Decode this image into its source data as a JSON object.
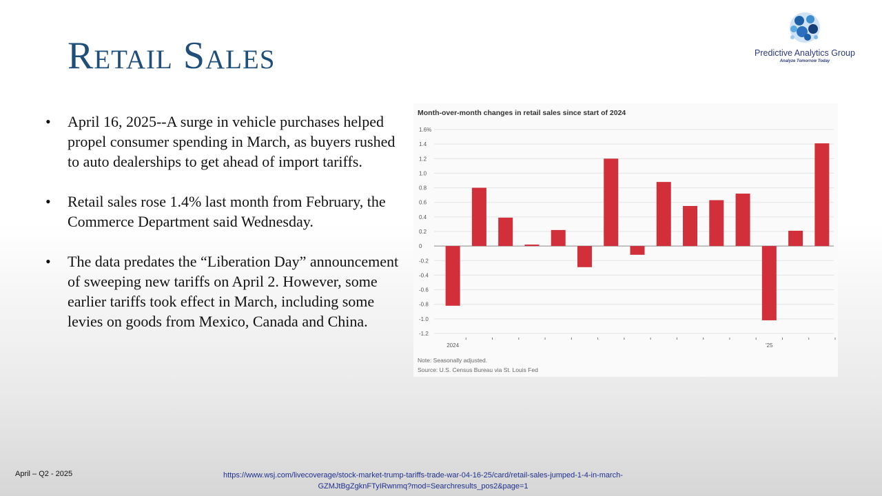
{
  "slide": {
    "title": "Retail Sales",
    "logo": {
      "name": "Predictive Analytics Group",
      "tagline": "Analyze Tomorrow Today"
    },
    "bullets": [
      "April 16, 2025--A surge in vehicle purchases helped propel consumer spending in March, as buyers rushed to auto dealerships to get ahead of import tariffs.",
      "Retail sales rose 1.4% last month from February, the Commerce Department said Wednesday.",
      "The data predates the “Liberation Day” announcement of sweeping new tariffs on April 2. However, some earlier tariffs took effect in March, including some levies on goods from Mexico, Canada and China."
    ],
    "footer_left": "April – Q2 - 2025",
    "footer_link": "https://www.wsj.com/livecoverage/stock-market-trump-tariffs-trade-war-04-16-25/card/retail-sales-jumped-1-4-in-march-GZMJtBgZgknFTyIRwnmq?mod=Searchresults_pos2&page=1"
  },
  "chart_data": {
    "type": "bar",
    "title": "Month-over-month changes in retail sales since start of 2024",
    "categories": [
      "2024",
      "",
      "",
      "",
      "",
      "",
      "",
      "",
      "",
      "",
      "",
      "",
      "'25",
      "",
      ""
    ],
    "values": [
      -0.82,
      0.8,
      0.39,
      0.02,
      0.22,
      -0.29,
      1.2,
      -0.12,
      0.88,
      0.55,
      0.63,
      0.72,
      -1.02,
      0.21,
      1.41
    ],
    "y_ticks": [
      "1.6%",
      "1.4",
      "1.2",
      "1.0",
      "0.8",
      "0.6",
      "0.4",
      "0.2",
      "0",
      "-0.2",
      "-0.4",
      "-0.6",
      "-0.8",
      "-1.0",
      "-1.2"
    ],
    "ylim": [
      -1.2,
      1.6
    ],
    "grid": true,
    "bar_color": "#d1303a",
    "note": "Note: Seasonally adjusted.",
    "source": "Source: U.S. Census Bureau via St. Louis Fed"
  }
}
